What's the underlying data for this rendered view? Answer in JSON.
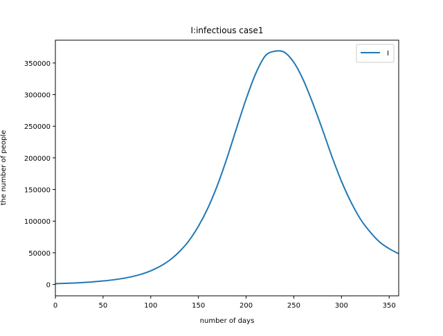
{
  "chart_data": {
    "type": "line",
    "title": "I:infectious  case1",
    "xlabel": "number of days",
    "ylabel": "the number of people",
    "xlim": [
      0,
      360
    ],
    "ylim": [
      -18000,
      386000
    ],
    "xticks": [
      0,
      50,
      100,
      150,
      200,
      250,
      300,
      350
    ],
    "yticks": [
      0,
      50000,
      100000,
      150000,
      200000,
      250000,
      300000,
      350000
    ],
    "grid": false,
    "legend_position": "top-right",
    "series": [
      {
        "name": "I",
        "color": "#1f77b4",
        "x": [
          0,
          10,
          20,
          30,
          40,
          50,
          60,
          70,
          80,
          90,
          100,
          110,
          120,
          130,
          140,
          150,
          160,
          170,
          180,
          190,
          200,
          210,
          220,
          230,
          240,
          250,
          260,
          270,
          280,
          290,
          300,
          310,
          320,
          330,
          340,
          350,
          360
        ],
        "values": [
          1200,
          1700,
          2300,
          3100,
          4200,
          5500,
          7100,
          9300,
          12200,
          16100,
          21500,
          28800,
          38500,
          51800,
          69000,
          92000,
          121000,
          157000,
          200000,
          247000,
          293000,
          333000,
          361000,
          368500,
          367000,
          351000,
          323000,
          286000,
          245000,
          202000,
          163000,
          130000,
          103000,
          83000,
          67000,
          56500,
          48500
        ]
      }
    ]
  }
}
